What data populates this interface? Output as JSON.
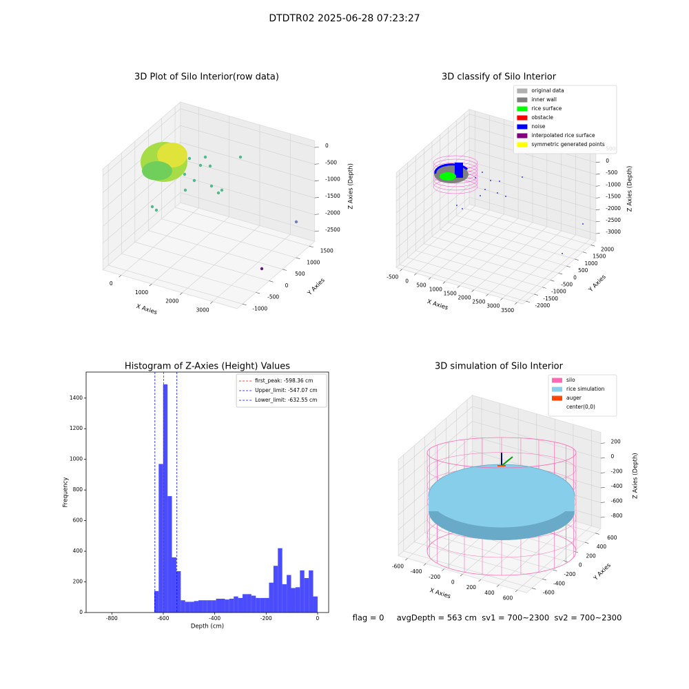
{
  "title": "DTDTR02 2025-06-28 07:23:27",
  "footer": "flag = 0     avgDepth = 563 cm  sv1 = 700~2300  sv2 = 700~2300",
  "chart_data": [
    {
      "type": "scatter3d",
      "title": "3D Plot of Silo Interior(row data)",
      "xlabel": "X Axies",
      "ylabel": "Y Axies",
      "zlabel": "Z Axies (Depth)",
      "xlim": [
        -600,
        3800
      ],
      "ylim": [
        -1200,
        1700
      ],
      "zlim": [
        -2800,
        200
      ],
      "xticks": [
        0,
        1000,
        2000,
        3000
      ],
      "yticks": [
        -1000,
        -500,
        0,
        500,
        1000,
        1500
      ],
      "zticks": [
        -2500,
        -2000,
        -1500,
        -1000,
        -500,
        0
      ],
      "grid": true
    },
    {
      "type": "scatter3d",
      "title": "3D classify of Silo Interior",
      "xlabel": "X Axies",
      "ylabel": "Y Axies",
      "zlabel": "Z Axies (Depth)",
      "xlim": [
        -700,
        3700
      ],
      "ylim": [
        -2200,
        2300
      ],
      "zlim": [
        -3300,
        700
      ],
      "xticks": [
        -500,
        0,
        500,
        1000,
        1500,
        2000,
        2500,
        3000,
        3500
      ],
      "yticks": [
        -2000,
        -1500,
        -1000,
        -500,
        0,
        500,
        1000,
        1500,
        2000
      ],
      "zticks": [
        -3000,
        -2500,
        -2000,
        -1500,
        -1000,
        -500,
        0,
        500
      ],
      "grid": true,
      "legend_loc": "upper right",
      "legend": [
        {
          "name": "original data",
          "color": "#b0b0b0"
        },
        {
          "name": "inner wall",
          "color": "#808080"
        },
        {
          "name": "rice surface",
          "color": "#00ff00"
        },
        {
          "name": "obstacle",
          "color": "#ff0000"
        },
        {
          "name": "noise",
          "color": "#0000ff"
        },
        {
          "name": "interpolated rice surface",
          "color": "#800080"
        },
        {
          "name": "symmetric generated points",
          "color": "#ffff00"
        }
      ]
    },
    {
      "type": "histogram",
      "title": "Histogram of Z-Axies (Height) Values",
      "xlabel": "Depth (cm)",
      "ylabel": "Frequency",
      "color": "#4c4cff",
      "xlim": [
        -900,
        43
      ],
      "ylim": [
        0,
        1570
      ],
      "xticks": [
        -800,
        -600,
        -400,
        -200,
        0
      ],
      "yticks": [
        0,
        200,
        400,
        600,
        800,
        1000,
        1200,
        1400
      ],
      "bins": [
        -635,
        -617.8,
        -600.7,
        -583.5,
        -566.4,
        -549.2,
        -532.0,
        -514.9,
        -497.7,
        -480.5,
        -463.4,
        -446.2,
        -429.1,
        -411.9,
        -394.7,
        -377.6,
        -360.4,
        -343.2,
        -326.1,
        -308.9,
        -291.8,
        -274.6,
        -257.4,
        -240.3,
        -223.1,
        -205.9,
        -188.8,
        -171.6,
        -154.5,
        -137.3,
        -120.1,
        -103.0,
        -85.8,
        -68.6,
        -51.5,
        -34.3,
        -17.2,
        0
      ],
      "counts": [
        140,
        970,
        1490,
        760,
        360,
        270,
        80,
        70,
        70,
        75,
        80,
        80,
        80,
        80,
        90,
        90,
        85,
        90,
        105,
        95,
        120,
        120,
        110,
        95,
        95,
        95,
        195,
        305,
        420,
        185,
        245,
        160,
        165,
        275,
        225,
        275,
        105
      ],
      "legend_loc": "upper right",
      "vlines": [
        {
          "name": "first_peak: -598.36 cm",
          "value": -598.36,
          "color": "#ff0000"
        },
        {
          "name": "Upper_limit: -547.07 cm",
          "value": -547.07,
          "color": "#0000ff"
        },
        {
          "name": "Lower_limit: -632.55 cm",
          "value": -632.55,
          "color": "#0000ff"
        }
      ]
    },
    {
      "type": "scatter3d",
      "title": "3D simulation of Silo Interior",
      "xlabel": "X Axies",
      "ylabel": "Y Axies",
      "zlabel": "Z Axies (Depth)",
      "xlim": [
        -700,
        700
      ],
      "ylim": [
        -700,
        700
      ],
      "zlim": [
        -950,
        350
      ],
      "xticks": [
        -600,
        -400,
        -200,
        0,
        200,
        400,
        600
      ],
      "yticks": [
        -600,
        -400,
        -200,
        0,
        200,
        400,
        600
      ],
      "zticks": [
        -800,
        -600,
        -400,
        -200,
        0,
        200
      ],
      "grid": true,
      "legend_loc": "upper right",
      "legend": [
        {
          "name": "silo",
          "color": "#ff69b4"
        },
        {
          "name": "rice simulation",
          "color": "#87ceeb"
        },
        {
          "name": "auger",
          "color": "#ff4500"
        },
        {
          "name": "center(0,0)",
          "color": "#ffffff"
        }
      ]
    }
  ]
}
